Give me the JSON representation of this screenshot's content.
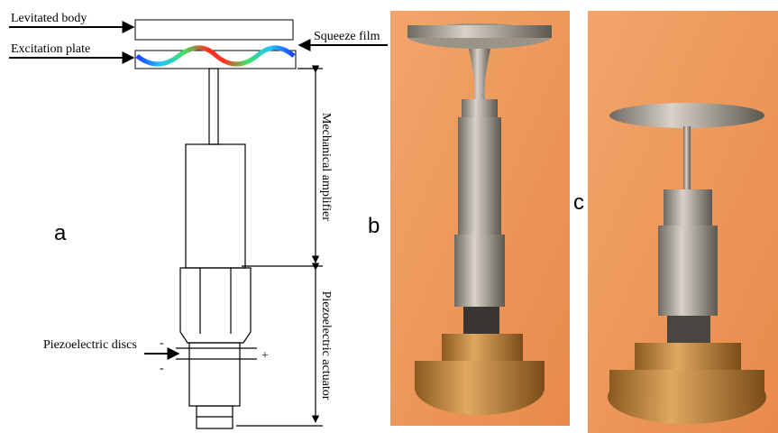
{
  "diagram": {
    "labels": {
      "levitated_body": "Levitated body",
      "excitation_plate": "Excitation plate",
      "squeeze_film": "Squeeze film",
      "mechanical_amplifier": "Mechanical amplifier",
      "piezoelectric_actuator": "Piezoelectric actuator",
      "piezoelectric_discs": "Piezoelectric discs",
      "minus_top": "-",
      "minus_bottom": "-",
      "plus": "+"
    },
    "panels": [
      "a",
      "b",
      "c"
    ]
  }
}
